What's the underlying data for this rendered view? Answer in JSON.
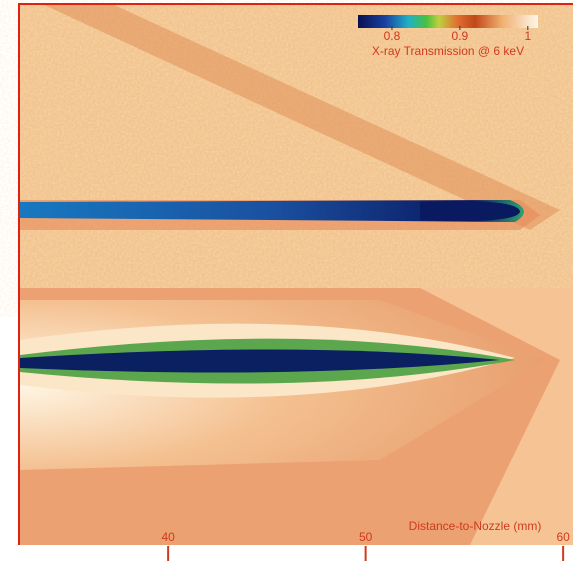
{
  "chart_data": {
    "type": "image",
    "xlabel": "Distance-to-Nozzle (mm)",
    "xlim": [
      32.5,
      60.5
    ],
    "xticks": [
      40,
      50,
      60
    ],
    "colorbar": {
      "label": "X-ray Transmission @ 6 keV",
      "lim": [
        0.75,
        1.015
      ],
      "ticks": [
        0.8,
        0.9,
        1.0
      ]
    }
  }
}
